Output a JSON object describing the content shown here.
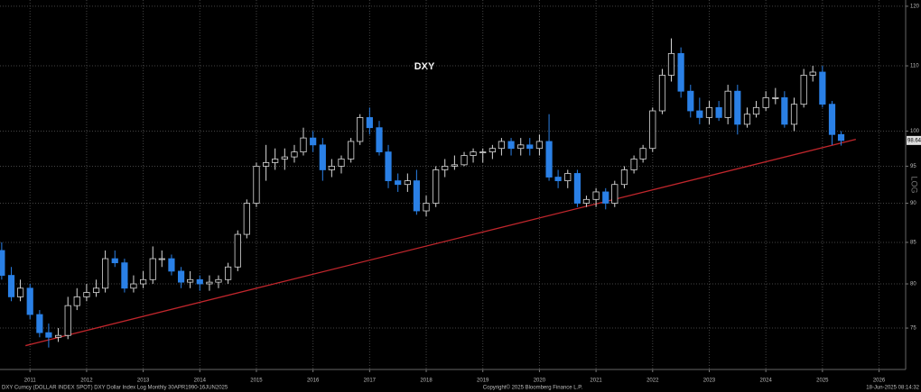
{
  "chart_data": {
    "type": "candlestick",
    "title": "DXY",
    "y_label": "LOG",
    "log_scale": true,
    "grid": true,
    "up_color": "#d8d8d8",
    "down_color": "#2a80e6",
    "x": [
      2010.5,
      2010.67,
      2010.83,
      2011.0,
      2011.17,
      2011.33,
      2011.5,
      2011.67,
      2011.83,
      2012.0,
      2012.17,
      2012.33,
      2012.5,
      2012.67,
      2012.83,
      2013.0,
      2013.17,
      2013.33,
      2013.5,
      2013.67,
      2013.83,
      2014.0,
      2014.17,
      2014.33,
      2014.5,
      2014.67,
      2014.83,
      2015.0,
      2015.17,
      2015.33,
      2015.5,
      2015.67,
      2015.83,
      2016.0,
      2016.17,
      2016.33,
      2016.5,
      2016.67,
      2016.83,
      2017.0,
      2017.17,
      2017.33,
      2017.5,
      2017.67,
      2017.83,
      2018.0,
      2018.17,
      2018.33,
      2018.5,
      2018.67,
      2018.83,
      2019.0,
      2019.17,
      2019.33,
      2019.5,
      2019.67,
      2019.83,
      2020.0,
      2020.17,
      2020.33,
      2020.5,
      2020.67,
      2020.83,
      2021.0,
      2021.17,
      2021.33,
      2021.5,
      2021.67,
      2021.83,
      2022.0,
      2022.17,
      2022.33,
      2022.5,
      2022.67,
      2022.83,
      2023.0,
      2023.17,
      2023.33,
      2023.5,
      2023.67,
      2023.83,
      2024.0,
      2024.17,
      2024.33,
      2024.5,
      2024.67,
      2024.83,
      2025.0,
      2025.17,
      2025.33
    ],
    "open": [
      84,
      81,
      78.5,
      79.5,
      76.5,
      74.5,
      74,
      74.2,
      77.5,
      78.5,
      79,
      79.5,
      83,
      82.5,
      79.5,
      80,
      80.5,
      83,
      83,
      81.5,
      80.2,
      80.5,
      80,
      80.2,
      80.5,
      82,
      86,
      90,
      95,
      95.5,
      96,
      96.3,
      97,
      99,
      98,
      94.5,
      95,
      96,
      98.5,
      102,
      100.5,
      97,
      93,
      92.5,
      93,
      89,
      90,
      94.5,
      95,
      95.2,
      96.5,
      97,
      97,
      97.5,
      98.5,
      97.5,
      98,
      97.5,
      98.5,
      93.5,
      93,
      94,
      90,
      90.5,
      91.5,
      90,
      92.5,
      94.5,
      96,
      97.5,
      103,
      108.5,
      112,
      106,
      103,
      102,
      103.5,
      102,
      106,
      101,
      102.5,
      103.5,
      105,
      105,
      101,
      104,
      108.5,
      109,
      104,
      99.5
    ],
    "high": [
      85,
      82,
      80.5,
      80,
      77,
      75.5,
      75,
      78.5,
      79.5,
      80,
      80.5,
      84,
      84,
      83,
      81,
      81.5,
      84.5,
      84,
      83.5,
      82,
      81.5,
      81,
      81,
      81,
      82.5,
      86.5,
      90.5,
      95.5,
      98,
      97.5,
      97.5,
      98,
      100.5,
      100,
      99,
      96,
      96.5,
      99,
      102.5,
      103.5,
      101.5,
      98,
      94,
      94,
      94.5,
      91,
      95,
      96,
      96.5,
      97,
      97.5,
      97.5,
      98,
      99,
      99,
      99,
      99,
      99.5,
      102.5,
      94.5,
      94.5,
      94.5,
      91,
      92,
      92,
      93,
      95,
      96.5,
      98,
      103.5,
      109.5,
      114.5,
      113,
      107,
      105,
      104.5,
      104.5,
      107,
      107,
      103.5,
      104.5,
      106,
      106.5,
      106,
      105,
      109.5,
      110,
      110,
      104.5,
      100
    ],
    "low": [
      80.5,
      78,
      78,
      76,
      74,
      72.9,
      73.5,
      73.8,
      77,
      78,
      78.5,
      79,
      82,
      79,
      79,
      79.5,
      80,
      82,
      81,
      79.5,
      79.5,
      79.2,
      79.2,
      79.5,
      80,
      81.5,
      85.5,
      89.5,
      93,
      94.5,
      94.5,
      95.5,
      96.5,
      97,
      93,
      93.5,
      94,
      95.5,
      98,
      99.5,
      96.5,
      92,
      91.5,
      91.5,
      88.5,
      88.3,
      89.5,
      93.5,
      94.5,
      95,
      95.5,
      95.5,
      96,
      96.5,
      96.5,
      96.5,
      96.5,
      96.5,
      93,
      92,
      92,
      89.5,
      89.5,
      89.5,
      89.2,
      89.5,
      92,
      94,
      95.5,
      97,
      102.5,
      107.5,
      105,
      102,
      101,
      101,
      101.5,
      101,
      99.5,
      100.5,
      102,
      103,
      104,
      100.5,
      100,
      103.5,
      107.5,
      103.5,
      98,
      97.9
    ],
    "close": [
      81,
      78.5,
      79.5,
      76.5,
      74.5,
      74,
      74.2,
      77.5,
      78.5,
      79,
      79.5,
      83,
      82.5,
      79.5,
      80,
      80.5,
      83,
      83,
      81.5,
      80.2,
      80.5,
      80,
      80.2,
      80.5,
      82,
      86,
      90,
      95,
      95.5,
      96,
      96.3,
      97,
      99,
      98,
      94.5,
      95,
      96,
      98.5,
      102,
      100.5,
      97,
      93,
      92.5,
      93,
      89,
      90,
      94.5,
      95,
      95.2,
      96.5,
      97,
      97,
      97.5,
      98.5,
      97.5,
      98,
      97.5,
      98.5,
      93.5,
      93,
      94,
      90,
      90.5,
      91.5,
      90,
      92.5,
      94.5,
      96,
      97.5,
      103,
      108.5,
      112,
      106,
      103,
      102,
      103.5,
      102,
      106,
      101,
      102.5,
      103.5,
      105,
      105,
      101,
      104,
      108.5,
      109,
      104,
      99.5,
      98.64
    ],
    "xlim": [
      2010.47,
      2026.47
    ],
    "xticks": [
      2011,
      2012,
      2013,
      2014,
      2015,
      2016,
      2017,
      2018,
      2019,
      2020,
      2021,
      2022,
      2023,
      2024,
      2025,
      2026
    ],
    "ylim": [
      70.6,
      121.1
    ],
    "yticks": [
      75,
      80,
      85,
      90,
      95,
      100,
      110,
      120
    ],
    "trendline": {
      "x": [
        2010.92,
        2025.59
      ],
      "values": [
        73.1,
        98.8
      ],
      "color": "#c0262c"
    }
  },
  "footer": {
    "left": "DXY Curncy (DOLLAR INDEX SPOT) DXY Dollar Index Log  Monthly 30APR1990-16JUN2025",
    "center": "Copyright© 2025 Bloomberg Finance L.P.",
    "right": "18-Jun-2025 08:14:32"
  }
}
